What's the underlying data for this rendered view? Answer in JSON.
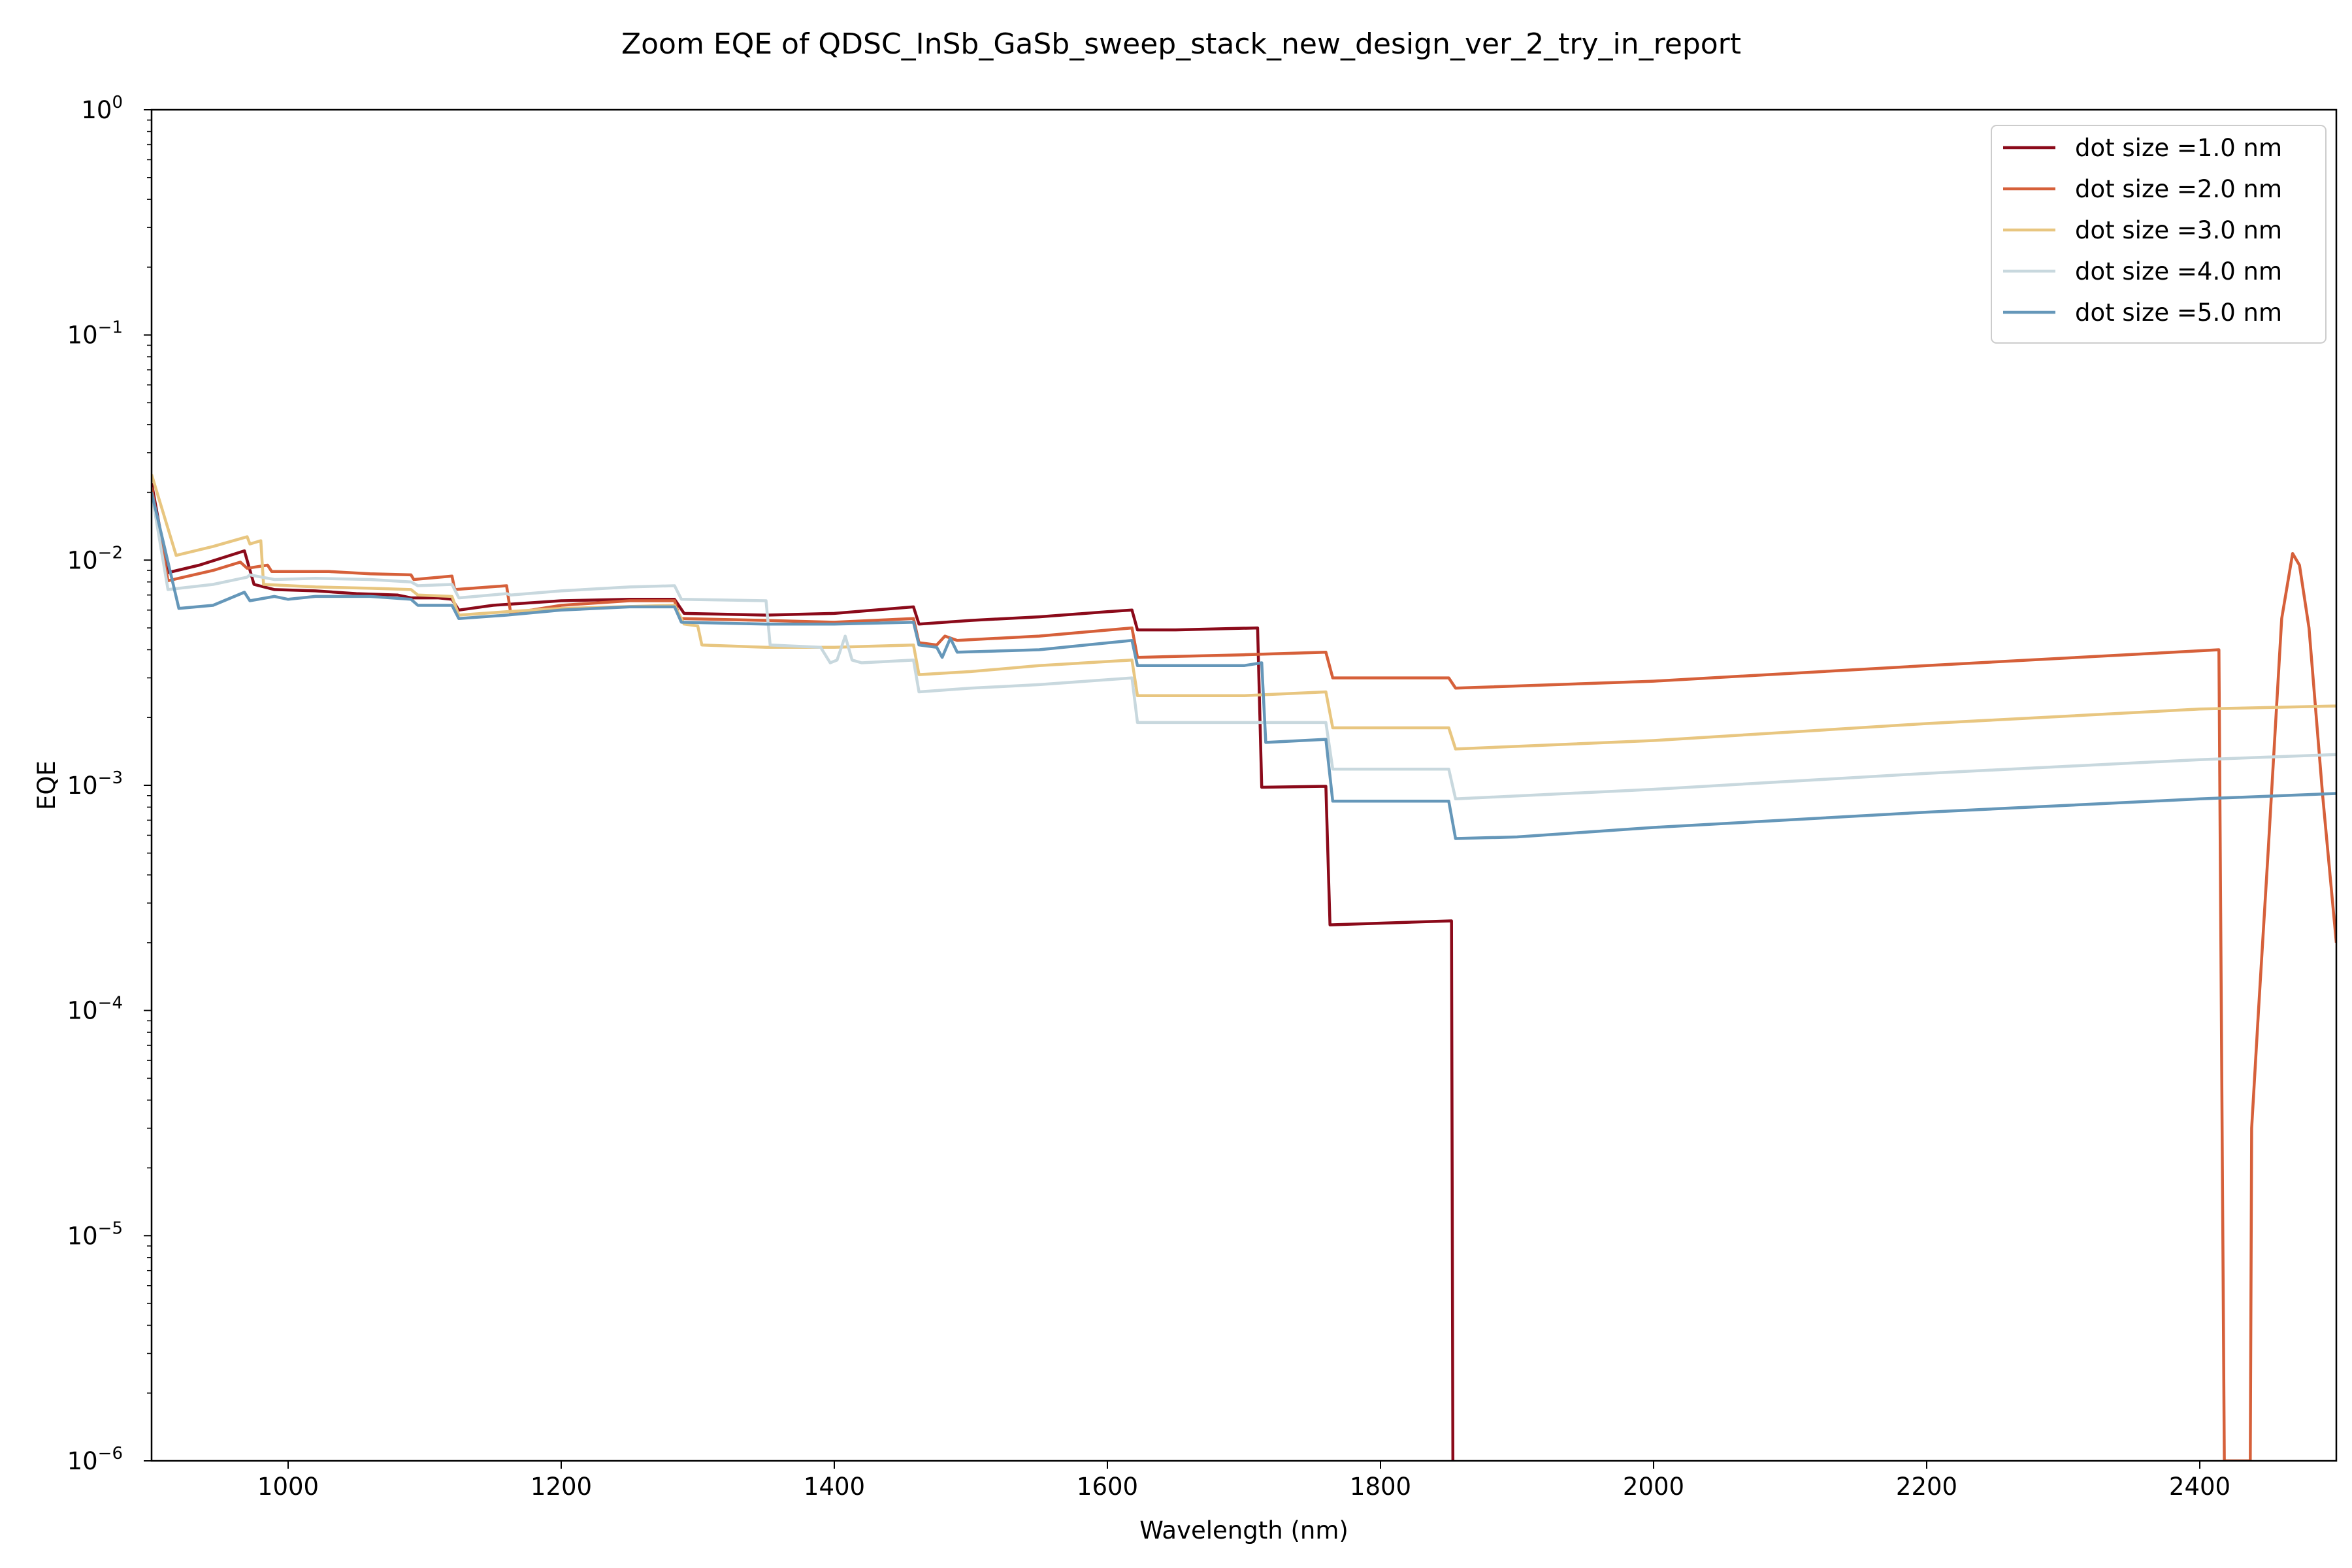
{
  "chart_data": {
    "type": "line",
    "title": "Zoom EQE of QDSC_InSb_GaSb_sweep_stack_new_design_ver_2_try_in_report",
    "xlabel": "Wavelength (nm)",
    "ylabel": "EQE",
    "xlim": [
      900,
      2500
    ],
    "ylim": [
      1e-06,
      1
    ],
    "yscale": "log",
    "grid": false,
    "legend_position": "top-right",
    "x_ticks": [
      {
        "value": 1000,
        "label": "1000"
      },
      {
        "value": 1200,
        "label": "1200"
      },
      {
        "value": 1400,
        "label": "1400"
      },
      {
        "value": 1600,
        "label": "1600"
      },
      {
        "value": 1800,
        "label": "1800"
      },
      {
        "value": 2000,
        "label": "2000"
      },
      {
        "value": 2200,
        "label": "2200"
      },
      {
        "value": 2400,
        "label": "2400"
      }
    ],
    "y_ticks": [
      {
        "value": 1e-06,
        "base": "10",
        "exp": "−6"
      },
      {
        "value": 1e-05,
        "base": "10",
        "exp": "−5"
      },
      {
        "value": 0.0001,
        "base": "10",
        "exp": "−4"
      },
      {
        "value": 0.001,
        "base": "10",
        "exp": "−3"
      },
      {
        "value": 0.01,
        "base": "10",
        "exp": "−2"
      },
      {
        "value": 0.1,
        "base": "10",
        "exp": "−1"
      },
      {
        "value": 1,
        "base": "10",
        "exp": "0"
      }
    ],
    "series": [
      {
        "name": "dot size =1.0 nm",
        "color": "#8b0a1a",
        "points": [
          [
            900,
            0.022
          ],
          [
            912,
            0.0088
          ],
          [
            935,
            0.0095
          ],
          [
            968,
            0.011
          ],
          [
            975,
            0.0078
          ],
          [
            990,
            0.0074
          ],
          [
            1020,
            0.0073
          ],
          [
            1050,
            0.0071
          ],
          [
            1080,
            0.007
          ],
          [
            1090,
            0.0068
          ],
          [
            1110,
            0.0068
          ],
          [
            1120,
            0.0067
          ],
          [
            1125,
            0.006
          ],
          [
            1150,
            0.0063
          ],
          [
            1200,
            0.0066
          ],
          [
            1250,
            0.0067
          ],
          [
            1283,
            0.0067
          ],
          [
            1290,
            0.0058
          ],
          [
            1350,
            0.0057
          ],
          [
            1400,
            0.0058
          ],
          [
            1458,
            0.0062
          ],
          [
            1462,
            0.0052
          ],
          [
            1500,
            0.0054
          ],
          [
            1550,
            0.0056
          ],
          [
            1600,
            0.0059
          ],
          [
            1618,
            0.006
          ],
          [
            1622,
            0.0049
          ],
          [
            1650,
            0.0049
          ],
          [
            1710,
            0.005
          ],
          [
            1713,
            0.00098
          ],
          [
            1760,
            0.00099
          ],
          [
            1763,
            0.00024
          ],
          [
            1852,
            0.00025
          ],
          [
            1853,
            1e-06
          ]
        ]
      },
      {
        "name": "dot size =2.0 nm",
        "color": "#d6603a",
        "points": [
          [
            900,
            0.021
          ],
          [
            912,
            0.0081
          ],
          [
            945,
            0.009
          ],
          [
            965,
            0.0098
          ],
          [
            970,
            0.0092
          ],
          [
            985,
            0.0095
          ],
          [
            988,
            0.0089
          ],
          [
            1030,
            0.0089
          ],
          [
            1060,
            0.0087
          ],
          [
            1090,
            0.0086
          ],
          [
            1092,
            0.0082
          ],
          [
            1120,
            0.0085
          ],
          [
            1122,
            0.0074
          ],
          [
            1160,
            0.0077
          ],
          [
            1163,
            0.0058
          ],
          [
            1200,
            0.0063
          ],
          [
            1250,
            0.0066
          ],
          [
            1283,
            0.0066
          ],
          [
            1287,
            0.0055
          ],
          [
            1350,
            0.0054
          ],
          [
            1400,
            0.0053
          ],
          [
            1458,
            0.0055
          ],
          [
            1462,
            0.0043
          ],
          [
            1475,
            0.0042
          ],
          [
            1481,
            0.0046
          ],
          [
            1490,
            0.0044
          ],
          [
            1550,
            0.0046
          ],
          [
            1618,
            0.005
          ],
          [
            1622,
            0.0037
          ],
          [
            1700,
            0.0038
          ],
          [
            1760,
            0.0039
          ],
          [
            1765,
            0.003
          ],
          [
            1850,
            0.003
          ],
          [
            1855,
            0.0027
          ],
          [
            2000,
            0.0029
          ],
          [
            2200,
            0.0034
          ],
          [
            2414,
            0.004
          ],
          [
            2418,
            1e-06
          ],
          [
            2437,
            1e-06
          ],
          [
            2438,
            3e-05
          ],
          [
            2443,
            0.0001
          ],
          [
            2450,
            0.0005
          ],
          [
            2460,
            0.0055
          ],
          [
            2468,
            0.0107
          ],
          [
            2473,
            0.0095
          ],
          [
            2480,
            0.005
          ],
          [
            2490,
            0.0009
          ],
          [
            2500,
            0.0002
          ]
        ]
      },
      {
        "name": "dot size =3.0 nm",
        "color": "#e8c680",
        "points": [
          [
            900,
            0.024
          ],
          [
            918,
            0.0105
          ],
          [
            945,
            0.0115
          ],
          [
            970,
            0.0127
          ],
          [
            972,
            0.0118
          ],
          [
            980,
            0.0122
          ],
          [
            982,
            0.0078
          ],
          [
            1020,
            0.0076
          ],
          [
            1060,
            0.0075
          ],
          [
            1090,
            0.0074
          ],
          [
            1095,
            0.007
          ],
          [
            1120,
            0.0069
          ],
          [
            1125,
            0.0057
          ],
          [
            1160,
            0.0059
          ],
          [
            1200,
            0.0061
          ],
          [
            1283,
            0.0063
          ],
          [
            1290,
            0.0052
          ],
          [
            1300,
            0.0051
          ],
          [
            1303,
            0.0042
          ],
          [
            1350,
            0.0041
          ],
          [
            1400,
            0.0041
          ],
          [
            1458,
            0.0042
          ],
          [
            1462,
            0.0031
          ],
          [
            1500,
            0.0032
          ],
          [
            1550,
            0.0034
          ],
          [
            1618,
            0.0036
          ],
          [
            1622,
            0.0025
          ],
          [
            1700,
            0.0025
          ],
          [
            1760,
            0.0026
          ],
          [
            1765,
            0.0018
          ],
          [
            1850,
            0.0018
          ],
          [
            1855,
            0.00145
          ],
          [
            2000,
            0.00158
          ],
          [
            2200,
            0.00188
          ],
          [
            2400,
            0.00218
          ],
          [
            2500,
            0.00225
          ]
        ]
      },
      {
        "name": "dot size =4.0 nm",
        "color": "#c8d8de",
        "points": [
          [
            900,
            0.02
          ],
          [
            912,
            0.0074
          ],
          [
            945,
            0.0078
          ],
          [
            970,
            0.0084
          ],
          [
            972,
            0.0086
          ],
          [
            990,
            0.0082
          ],
          [
            1020,
            0.0083
          ],
          [
            1060,
            0.0082
          ],
          [
            1090,
            0.008
          ],
          [
            1095,
            0.0077
          ],
          [
            1120,
            0.0078
          ],
          [
            1125,
            0.0068
          ],
          [
            1160,
            0.0071
          ],
          [
            1163,
            0.007
          ],
          [
            1200,
            0.0073
          ],
          [
            1250,
            0.0076
          ],
          [
            1283,
            0.0077
          ],
          [
            1288,
            0.0067
          ],
          [
            1350,
            0.0066
          ],
          [
            1353,
            0.0042
          ],
          [
            1390,
            0.0041
          ],
          [
            1397,
            0.0035
          ],
          [
            1402,
            0.0036
          ],
          [
            1408,
            0.0046
          ],
          [
            1413,
            0.0036
          ],
          [
            1420,
            0.0035
          ],
          [
            1458,
            0.0036
          ],
          [
            1462,
            0.0026
          ],
          [
            1500,
            0.0027
          ],
          [
            1550,
            0.0028
          ],
          [
            1618,
            0.003
          ],
          [
            1622,
            0.0019
          ],
          [
            1700,
            0.0019
          ],
          [
            1760,
            0.0019
          ],
          [
            1765,
            0.00118
          ],
          [
            1850,
            0.00118
          ],
          [
            1855,
            0.00087
          ],
          [
            2000,
            0.00096
          ],
          [
            2200,
            0.00113
          ],
          [
            2400,
            0.0013
          ],
          [
            2500,
            0.00137
          ]
        ]
      },
      {
        "name": "dot size =5.0 nm",
        "color": "#6597b9",
        "points": [
          [
            900,
            0.02
          ],
          [
            920,
            0.0061
          ],
          [
            945,
            0.0063
          ],
          [
            968,
            0.0072
          ],
          [
            972,
            0.0066
          ],
          [
            990,
            0.0069
          ],
          [
            1000,
            0.0067
          ],
          [
            1020,
            0.0069
          ],
          [
            1060,
            0.0069
          ],
          [
            1090,
            0.0067
          ],
          [
            1095,
            0.0063
          ],
          [
            1120,
            0.0063
          ],
          [
            1125,
            0.0055
          ],
          [
            1160,
            0.0057
          ],
          [
            1200,
            0.006
          ],
          [
            1250,
            0.0062
          ],
          [
            1283,
            0.0062
          ],
          [
            1288,
            0.0053
          ],
          [
            1350,
            0.0052
          ],
          [
            1400,
            0.0052
          ],
          [
            1458,
            0.0053
          ],
          [
            1462,
            0.0042
          ],
          [
            1475,
            0.0041
          ],
          [
            1479,
            0.0037
          ],
          [
            1485,
            0.0045
          ],
          [
            1490,
            0.0039
          ],
          [
            1550,
            0.004
          ],
          [
            1618,
            0.0044
          ],
          [
            1622,
            0.0034
          ],
          [
            1700,
            0.0034
          ],
          [
            1713,
            0.0035
          ],
          [
            1716,
            0.00155
          ],
          [
            1760,
            0.0016
          ],
          [
            1765,
            0.00085
          ],
          [
            1850,
            0.00085
          ],
          [
            1855,
            0.00058
          ],
          [
            1900,
            0.00059
          ],
          [
            2000,
            0.00065
          ],
          [
            2200,
            0.00076
          ],
          [
            2400,
            0.00087
          ],
          [
            2500,
            0.00092
          ]
        ]
      }
    ]
  }
}
